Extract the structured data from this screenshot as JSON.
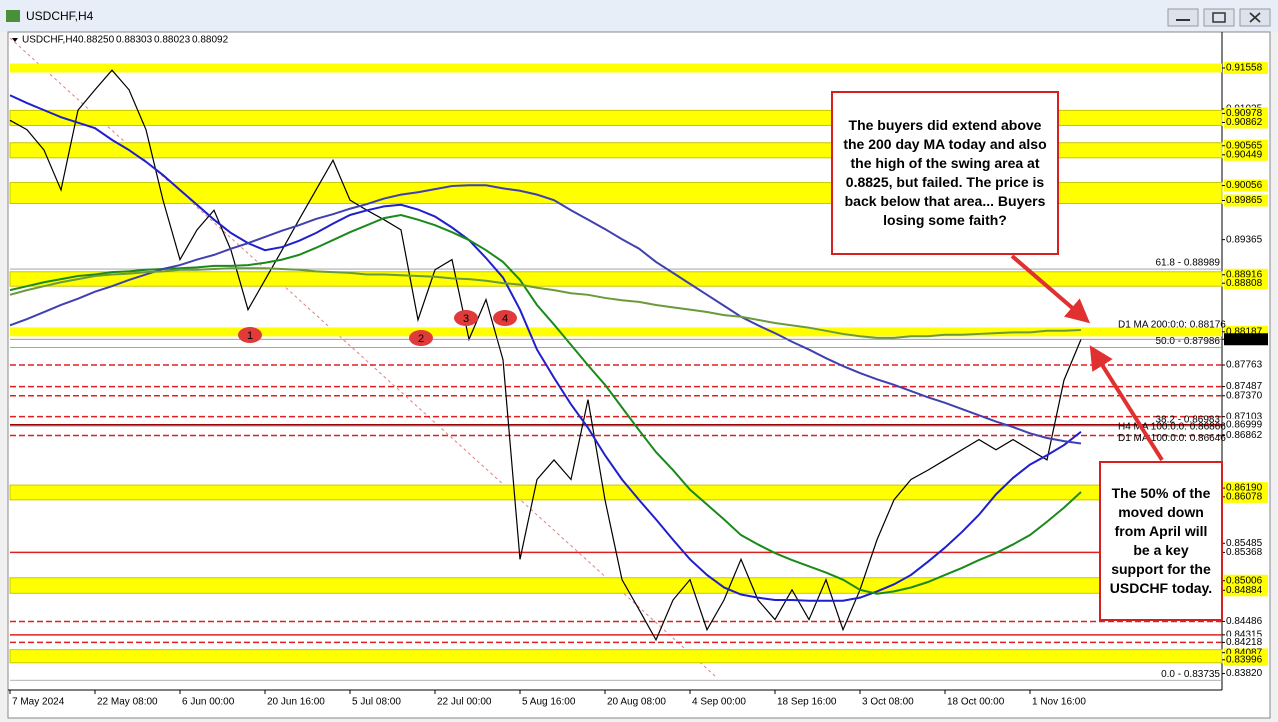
{
  "window_title": "USDCHF,H4",
  "chart_data": {
    "type": "line",
    "symbol": "USDCHF,H4",
    "ohlc": [
      "0.88250",
      "0.88303",
      "0.88023",
      "0.88092"
    ],
    "categories": [
      "7 May 2024",
      null,
      null,
      null,
      null,
      "22 May 08:00",
      null,
      null,
      null,
      null,
      "6 Jun 00:00",
      null,
      null,
      null,
      null,
      "20 Jun 16:00",
      null,
      null,
      null,
      null,
      "5 Jul 08:00",
      null,
      null,
      null,
      null,
      "22 Jul 00:00",
      null,
      null,
      null,
      null,
      "5 Aug 16:00",
      null,
      null,
      null,
      null,
      "20 Aug 08:00",
      null,
      null,
      null,
      null,
      "4 Sep 00:00",
      null,
      null,
      null,
      null,
      "18 Sep 16:00",
      null,
      null,
      null,
      null,
      "3 Oct 08:00",
      null,
      null,
      null,
      null,
      "18 Oct 00:00",
      null,
      null,
      null,
      null,
      "1 Nov 16:00",
      null,
      null,
      null
    ],
    "series": [
      {
        "color": "#000000",
        "values": [
          0.9089,
          0.9077,
          0.9051,
          0.9,
          0.9102,
          0.9128,
          0.9153,
          0.9128,
          0.9077,
          0.8987,
          0.8911,
          0.8949,
          0.8974,
          0.8923,
          0.8847,
          0.8885,
          0.8923,
          0.8962,
          0.9,
          0.9038,
          0.8987,
          0.8974,
          0.8962,
          0.8949,
          0.8834,
          0.8898,
          0.8911,
          0.8809,
          0.886,
          0.8783,
          0.8528,
          0.863,
          0.8655,
          0.863,
          0.8732,
          0.8604,
          0.8502,
          0.8464,
          0.8425,
          0.8476,
          0.8502,
          0.8438,
          0.8476,
          0.8528,
          0.8476,
          0.8451,
          0.8489,
          0.8451,
          0.8502,
          0.8438,
          0.8489,
          0.8553,
          0.8604,
          0.863,
          0.8642,
          0.8655,
          0.8668,
          0.8681,
          0.8668,
          0.8681,
          0.8668,
          0.8655,
          0.8757,
          0.8809
        ]
      },
      {
        "color": "#1f1fcc",
        "label": "H4 MA 100:0:0: 0.86866",
        "values": [
          0.9121,
          0.9111,
          0.9102,
          0.9093,
          0.9086,
          0.9079,
          0.9064,
          0.9051,
          0.9036,
          0.9019,
          0.9,
          0.8981,
          0.8962,
          0.8945,
          0.8932,
          0.8923,
          0.8927,
          0.8935,
          0.8945,
          0.8957,
          0.8968,
          0.8974,
          0.8979,
          0.8981,
          0.8975,
          0.8966,
          0.8952,
          0.8936,
          0.8913,
          0.8888,
          0.8847,
          0.8796,
          0.876,
          0.8726,
          0.8696,
          0.8661,
          0.863,
          0.8604,
          0.8579,
          0.8553,
          0.8528,
          0.8508,
          0.8492,
          0.8483,
          0.8479,
          0.8476,
          0.8476,
          0.8475,
          0.8475,
          0.8475,
          0.8479,
          0.8487,
          0.8496,
          0.8508,
          0.8525,
          0.8543,
          0.8563,
          0.8585,
          0.8611,
          0.8632,
          0.8649,
          0.8661,
          0.8674,
          0.8691
        ]
      },
      {
        "color": "#1a8a1a",
        "values": [
          0.8872,
          0.8877,
          0.8882,
          0.8886,
          0.889,
          0.8892,
          0.8895,
          0.8896,
          0.8898,
          0.8899,
          0.89,
          0.8901,
          0.8903,
          0.8903,
          0.8904,
          0.8907,
          0.8911,
          0.8917,
          0.8926,
          0.8936,
          0.8946,
          0.8955,
          0.8964,
          0.8968,
          0.8962,
          0.8955,
          0.8946,
          0.8936,
          0.8923,
          0.8908,
          0.8885,
          0.8853,
          0.8828,
          0.8802,
          0.8776,
          0.8751,
          0.8722,
          0.8693,
          0.8665,
          0.8642,
          0.8617,
          0.8598,
          0.8579,
          0.8559,
          0.8547,
          0.8536,
          0.8527,
          0.8519,
          0.8511,
          0.8502,
          0.8489,
          0.8484,
          0.8487,
          0.8492,
          0.8499,
          0.8508,
          0.8517,
          0.8527,
          0.8536,
          0.8547,
          0.8559,
          0.8576,
          0.8594,
          0.8614
        ]
      },
      {
        "color": "#4040b0",
        "label": "D1 MA 100:0:0: 0.86646",
        "values": [
          0.8827,
          0.8835,
          0.8844,
          0.8853,
          0.8861,
          0.887,
          0.8877,
          0.8885,
          0.8892,
          0.8899,
          0.8904,
          0.8911,
          0.8917,
          0.8925,
          0.8932,
          0.894,
          0.8948,
          0.8955,
          0.8963,
          0.8969,
          0.8976,
          0.8982,
          0.8989,
          0.8994,
          0.8997,
          0.9001,
          0.9005,
          0.9006,
          0.9006,
          0.9002,
          0.8999,
          0.8994,
          0.8987,
          0.8974,
          0.8962,
          0.895,
          0.8937,
          0.8925,
          0.8908,
          0.8894,
          0.888,
          0.8866,
          0.8852,
          0.8838,
          0.8827,
          0.8817,
          0.8806,
          0.8796,
          0.8785,
          0.8775,
          0.8766,
          0.8758,
          0.8751,
          0.8743,
          0.8735,
          0.8728,
          0.872,
          0.8712,
          0.8704,
          0.8697,
          0.8689,
          0.8683,
          0.8679,
          0.8676
        ]
      },
      {
        "color": "#6a9a3a",
        "label": "D1 MA 200:0:0: 0.88176",
        "values": [
          0.8866,
          0.8872,
          0.8877,
          0.8882,
          0.8886,
          0.889,
          0.8892,
          0.8893,
          0.8895,
          0.8896,
          0.8898,
          0.8898,
          0.8899,
          0.89,
          0.89,
          0.89,
          0.8899,
          0.8898,
          0.8896,
          0.8895,
          0.8894,
          0.8892,
          0.8892,
          0.8891,
          0.889,
          0.8889,
          0.8887,
          0.8886,
          0.8884,
          0.8881,
          0.8879,
          0.8875,
          0.8872,
          0.8868,
          0.8866,
          0.8862,
          0.8859,
          0.8857,
          0.8853,
          0.885,
          0.8847,
          0.8844,
          0.884,
          0.8838,
          0.8834,
          0.883,
          0.8827,
          0.8824,
          0.882,
          0.8816,
          0.8813,
          0.8811,
          0.8811,
          0.8813,
          0.8813,
          0.8815,
          0.8815,
          0.8816,
          0.8817,
          0.8818,
          0.8818,
          0.882,
          0.882,
          0.8821
        ]
      }
    ],
    "ylim": [
      0.8361,
      0.9198
    ],
    "yticks": [
      0.91035,
      0.89365,
      0.85485,
      {
        "value": 0.8382,
        "label": "0.83820"
      }
    ],
    "zones": [
      {
        "low": {
          "value": 0.90862,
          "label": "0.90862"
        },
        "high": {
          "value": 0.90978,
          "label": "0.90978"
        }
      },
      {
        "low": {
          "value": 0.90449,
          "label": "0.90449"
        },
        "high": {
          "value": 0.90565,
          "label": "0.90565"
        }
      },
      {
        "low": {
          "value": 0.89865,
          "label": "0.89865"
        },
        "high": {
          "value": 0.90056,
          "label": "0.90056"
        }
      },
      {
        "low": {
          "value": 0.88808,
          "label": "0.88808"
        },
        "high": {
          "value": 0.88916,
          "label": "0.88916"
        }
      },
      {
        "low": {
          "value": 0.86078,
          "label": "0.86078"
        },
        "high": {
          "value": 0.8619,
          "label": "0.86190"
        }
      },
      {
        "low": {
          "value": 0.84884,
          "label": "0.84884"
        },
        "high": {
          "value": 0.85006,
          "label": "0.85006"
        }
      },
      {
        "low": {
          "value": 0.83996,
          "label": "0.83996"
        },
        "high": {
          "value": 0.84087,
          "label": "0.84087"
        }
      }
    ],
    "zone_color": "#ffff00",
    "lines": [
      {
        "value": 0.91558,
        "label": "0.91558",
        "color": "#ffff00",
        "dashed": false
      },
      {
        "value": 0.88187,
        "label": "0.88187",
        "color": "#ffff00",
        "dashed": false
      },
      {
        "value": 0.87763,
        "label": "0.87763",
        "color": "#e02020",
        "dashed": true
      },
      {
        "value": 0.87487,
        "label": "0.87487",
        "color": "#e02020",
        "dashed": true
      },
      {
        "value": 0.8737,
        "label": "0.87370",
        "color": "#e02020",
        "dashed": true
      },
      {
        "value": 0.87103,
        "label": "0.87103",
        "color": "#e02020",
        "dashed": true
      },
      {
        "value": 0.86999,
        "label": "0.86999",
        "color": "#a00000",
        "dashed": false
      },
      {
        "value": 0.86862,
        "label": "0.86862",
        "color": "#e02020",
        "dashed": true
      },
      {
        "value": 0.85368,
        "label": "0.85368",
        "color": "#e02020",
        "dashed": false
      },
      {
        "value": 0.84486,
        "label": "0.84486",
        "color": "#e02020",
        "dashed": true
      },
      {
        "value": 0.84315,
        "label": "0.84315",
        "color": "#e02020",
        "dashed": false
      },
      {
        "value": 0.84218,
        "label": "0.84218",
        "color": "#e02020",
        "dashed": true
      }
    ],
    "fib": [
      {
        "value": 0.88989,
        "label": "61.8 - 0.88989"
      },
      {
        "value": 0.87986,
        "label": "50.0 - 0.87986"
      },
      {
        "value": 0.86983,
        "label": "38.2 - 0.86983"
      },
      {
        "value": 0.83735,
        "label": "0.0 - 0.83735"
      }
    ],
    "current": {
      "value": 0.88092,
      "label": "0.88092"
    },
    "markers": [
      "1",
      "2",
      "3",
      "4"
    ],
    "annotations": [
      "The buyers did extend above the 200 day MA today and also the high of the swing area at 0.8825, but failed. The price is back below that area... Buyers losing some faith?",
      "The 50% of the moved down from April will be a key support for the USDCHF today."
    ]
  }
}
